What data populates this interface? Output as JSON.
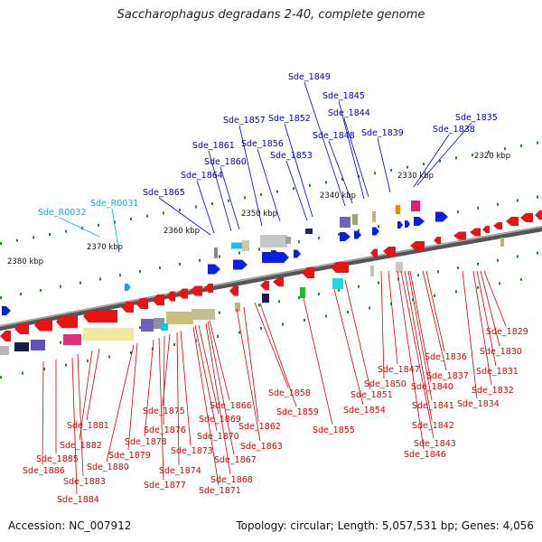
{
  "title": "Saccharophagus degradans 2-40, complete genome",
  "footer": {
    "accession": "Accession: NC_007912",
    "summary": "Topology: circular; Length: 5,057,531 bp; Genes: 4,056"
  },
  "colors": {
    "forward_label": "#0000cc",
    "reverse_label": "#dd0000",
    "rna_label": "#00b0e0",
    "backbone": "#777777",
    "ticks": "#228822"
  },
  "kbp_labels": [
    "2320 kbp",
    "2330 kbp",
    "2340 kbp",
    "2350 kbp",
    "2360 kbp",
    "2370 kbp",
    "2380 kbp"
  ],
  "forward_genes": [
    "Sde_1835",
    "Sde_1838",
    "Sde_1839",
    "Sde_1844",
    "Sde_1845",
    "Sde_1848",
    "Sde_1849",
    "Sde_1852",
    "Sde_1853",
    "Sde_1856",
    "Sde_1857",
    "Sde_1860",
    "Sde_1861",
    "Sde_1864",
    "Sde_1865"
  ],
  "rna_genes": [
    "Sde_R0031",
    "Sde_R0032"
  ],
  "reverse_genes": [
    "Sde_1829",
    "Sde_1830",
    "Sde_1831",
    "Sde_1832",
    "Sde_1834",
    "Sde_1836",
    "Sde_1837",
    "Sde_1840",
    "Sde_1841",
    "Sde_1842",
    "Sde_1843",
    "Sde_1846",
    "Sde_1847",
    "Sde_1850",
    "Sde_1851",
    "Sde_1854",
    "Sde_1855",
    "Sde_1858",
    "Sde_1859",
    "Sde_1862",
    "Sde_1863",
    "Sde_1866",
    "Sde_1867",
    "Sde_1868",
    "Sde_1869",
    "Sde_1870",
    "Sde_1871",
    "Sde_1873",
    "Sde_1874",
    "Sde_1875",
    "Sde_1876",
    "Sde_1877",
    "Sde_1878",
    "Sde_1879",
    "Sde_1880",
    "Sde_1881",
    "Sde_1882",
    "Sde_1883",
    "Sde_1884",
    "Sde_1885",
    "Sde_1886"
  ]
}
